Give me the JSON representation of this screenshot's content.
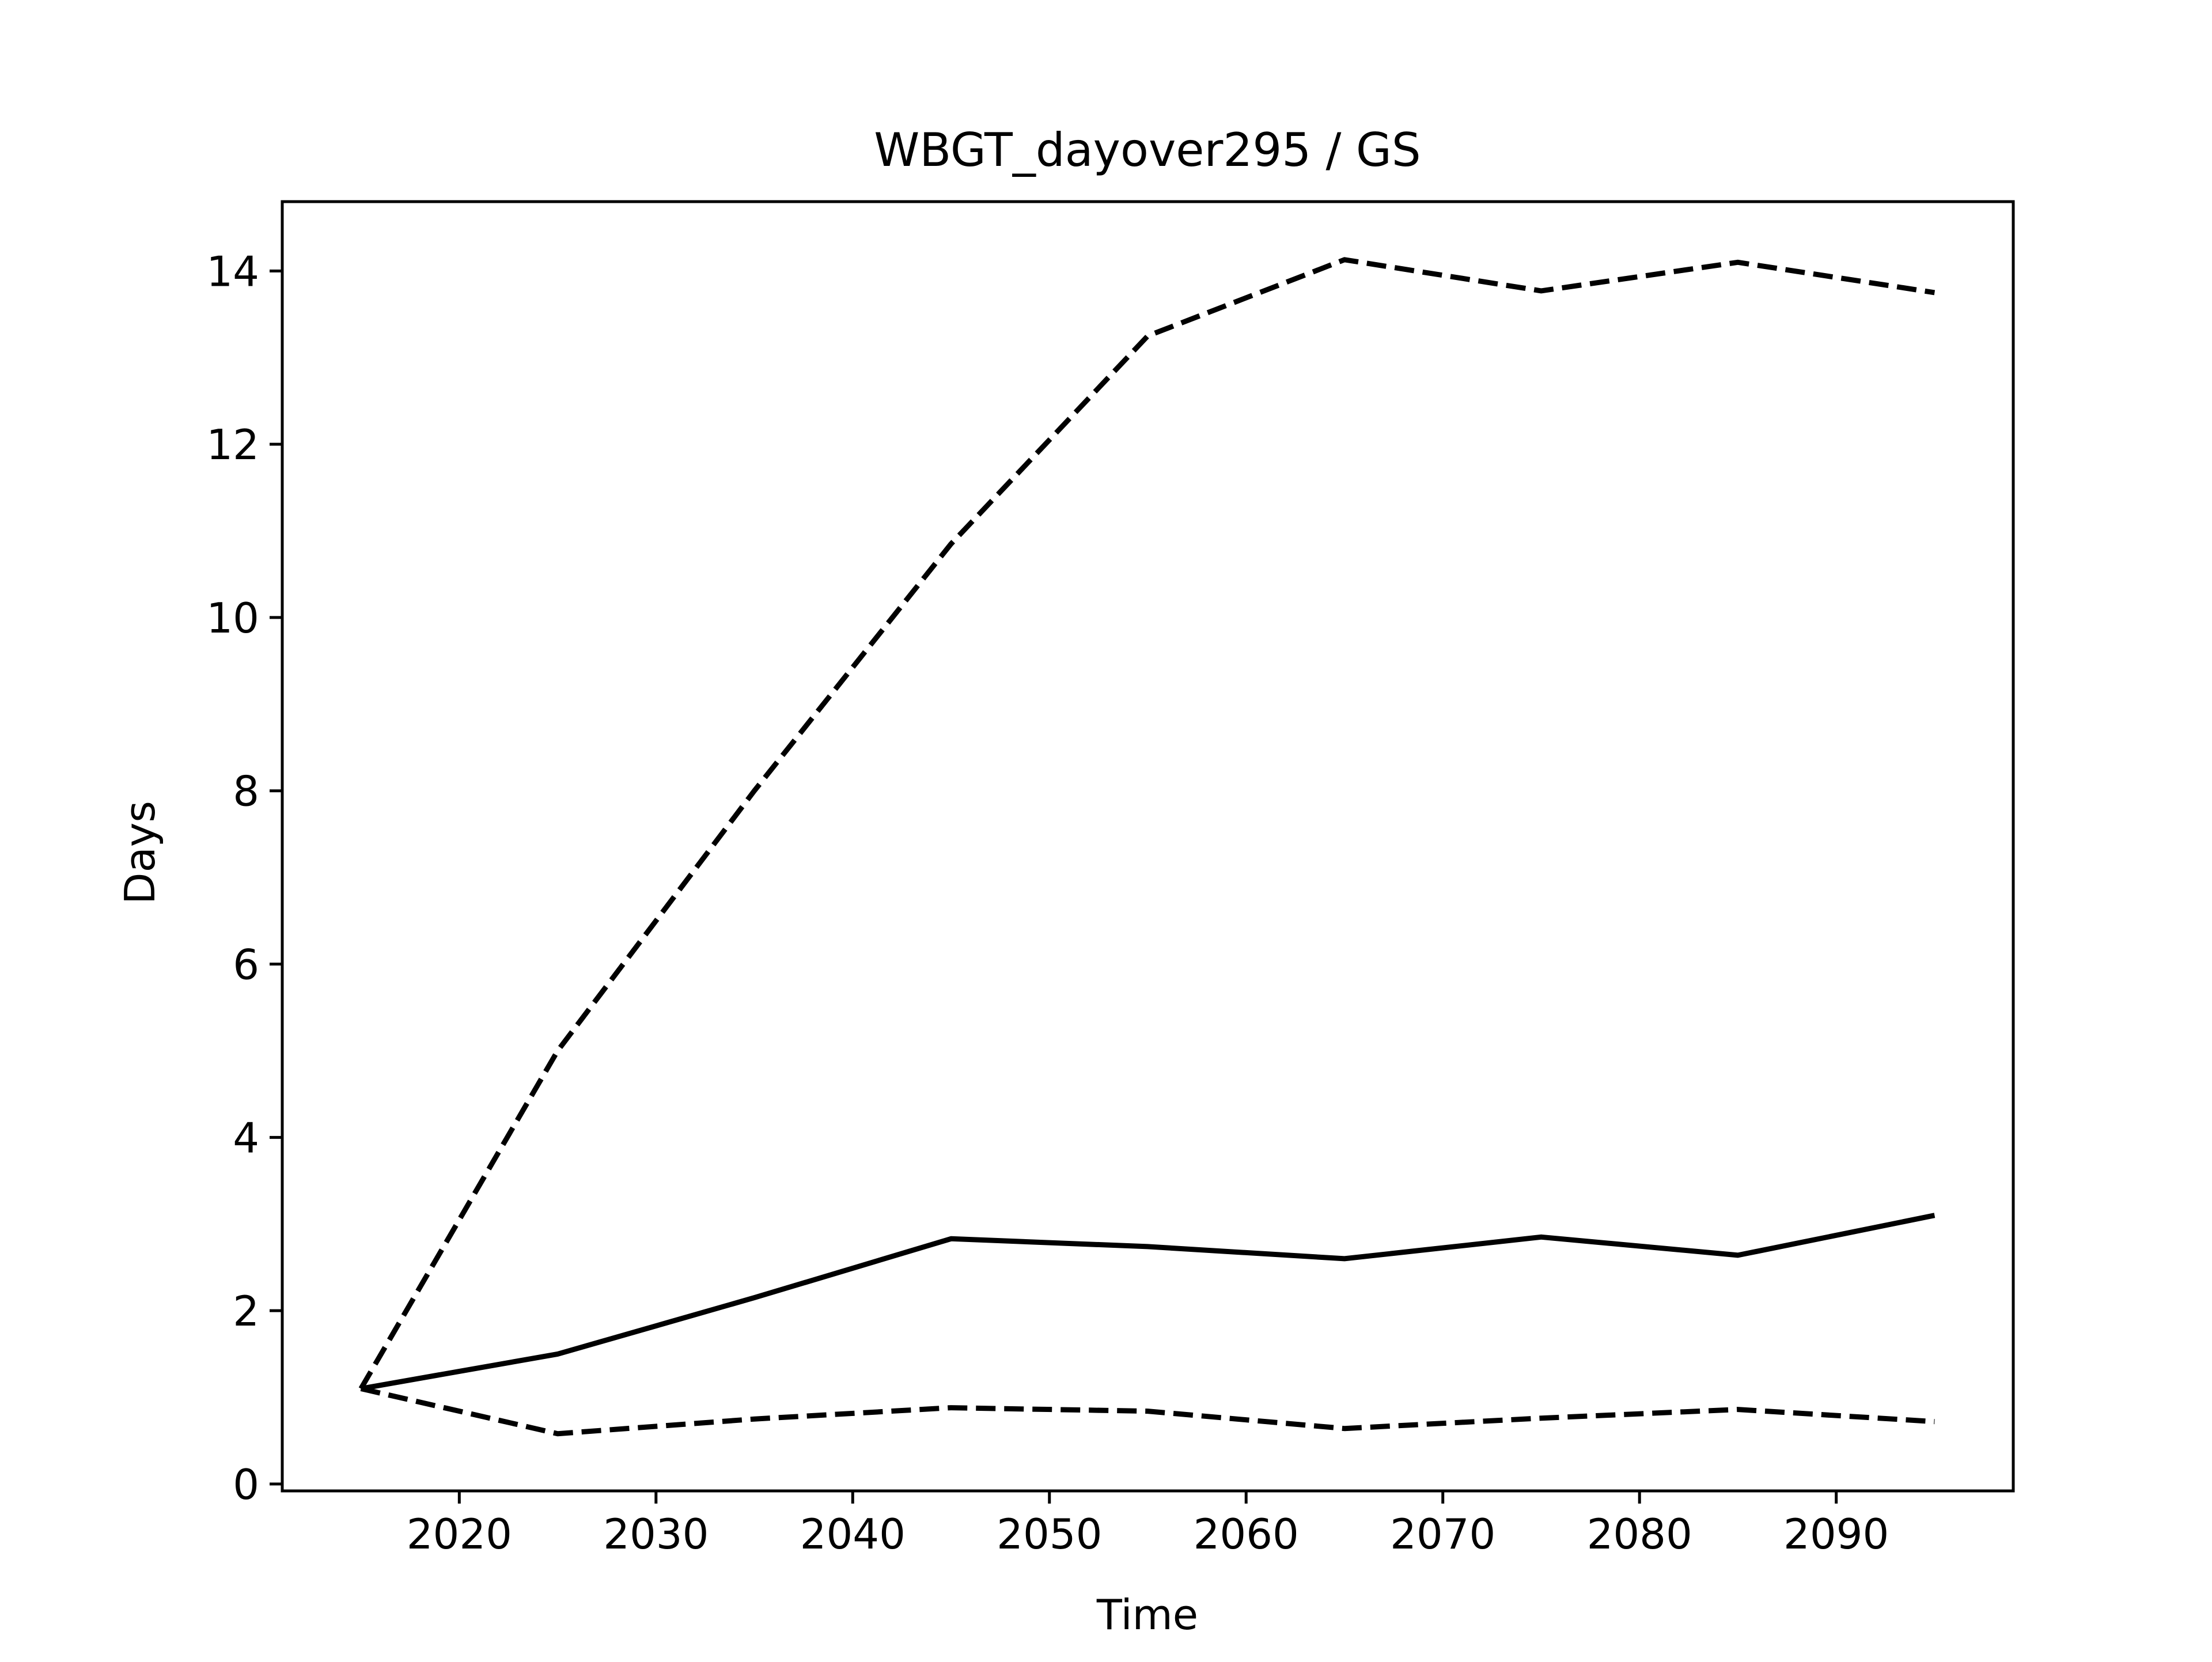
{
  "chart_data": {
    "type": "line",
    "title": "WBGT_dayover295 / GS",
    "xlabel": "Time",
    "ylabel": "Days",
    "xlim": [
      2011,
      2099
    ],
    "ylim": [
      -0.08,
      14.8
    ],
    "xticks": [
      2020,
      2030,
      2040,
      2050,
      2060,
      2070,
      2080,
      2090
    ],
    "xtick_labels": [
      "2020",
      "2030",
      "2040",
      "2050",
      "2060",
      "2070",
      "2080",
      "2090"
    ],
    "yticks": [
      0,
      2,
      4,
      6,
      8,
      10,
      12,
      14
    ],
    "ytick_labels": [
      "0",
      "2",
      "4",
      "6",
      "8",
      "10",
      "12",
      "14"
    ],
    "grid": false,
    "legend": "none",
    "x": [
      2015,
      2025,
      2035,
      2045,
      2055,
      2065,
      2075,
      2085,
      2095
    ],
    "series": [
      {
        "values": [
          1.1,
          1.5,
          2.15,
          2.83,
          2.74,
          2.6,
          2.85,
          2.64,
          3.1
        ],
        "style": "solid",
        "color": "#000000"
      },
      {
        "values": [
          1.1,
          5.0,
          8.0,
          10.85,
          13.25,
          14.13,
          13.77,
          14.1,
          13.75
        ],
        "style": "dashed",
        "color": "#000000"
      },
      {
        "values": [
          1.1,
          0.58,
          0.75,
          0.88,
          0.84,
          0.64,
          0.76,
          0.86,
          0.72
        ],
        "style": "dashed",
        "color": "#000000"
      }
    ]
  }
}
